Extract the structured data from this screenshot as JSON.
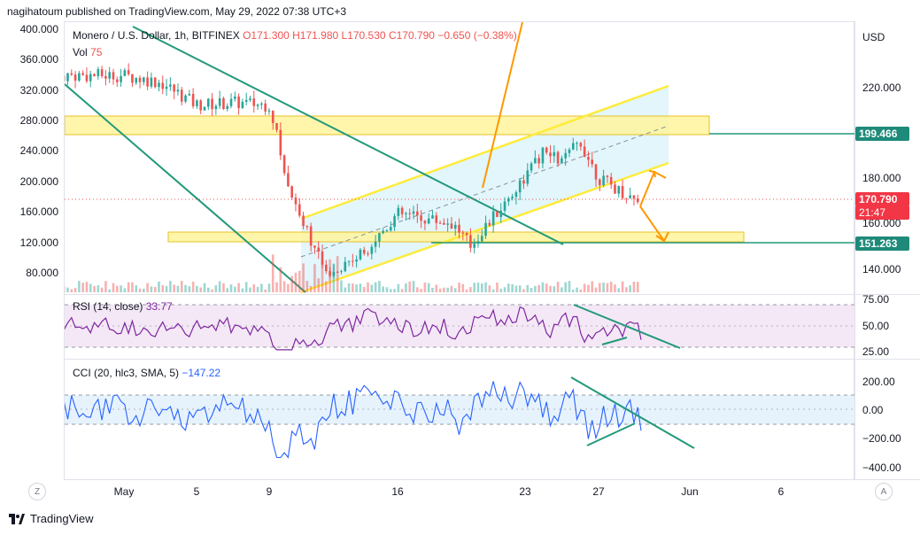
{
  "header": {
    "publisher": "nagihatoum published on TradingView.com, May 29, 2022 07:38 UTC+3"
  },
  "legend": {
    "symbol": "Monero / U.S. Dollar, 1h, BITFINEX",
    "open": "O171.300",
    "high": "H171.980",
    "low": "L170.530",
    "close": "C170.790",
    "change": "−0.650 (−0.38%)",
    "vol_label": "Vol",
    "vol_value": "75"
  },
  "right_axis": {
    "currency": "USD",
    "ticks": [
      "220.000",
      "180.000",
      "160.000",
      "140.000"
    ],
    "badges": [
      {
        "label": "199.466",
        "color": "#1e8a7a"
      },
      {
        "label": "170.790",
        "color": "#f23645"
      },
      {
        "label": "21:47",
        "color": "#f23645"
      },
      {
        "label": "151.263",
        "color": "#1e8a7a"
      }
    ]
  },
  "left_axis": {
    "ticks": [
      "400.000",
      "360.000",
      "320.000",
      "280.000",
      "240.000",
      "200.000",
      "160.000",
      "120.000",
      "80.000"
    ]
  },
  "rsi": {
    "label": "RSI (14, close)",
    "value": "33.77",
    "ticks": [
      "75.00",
      "50.00",
      "25.00"
    ]
  },
  "cci": {
    "label": "CCI (20, hlc3, SMA, 5)",
    "value": "−147.22",
    "ticks": [
      "200.00",
      "0.00",
      "−200.00",
      "−400.00"
    ]
  },
  "x_axis": {
    "labels": [
      "May",
      "5",
      "9",
      "16",
      "23",
      "27",
      "Jun",
      "6"
    ]
  },
  "controls": {
    "zoom_left": "Z",
    "auto_right": "A"
  },
  "footer": {
    "brand": "TradingView"
  },
  "colors": {
    "up": "#26a69a",
    "down": "#ef5350",
    "rsi_line": "#7e26a0",
    "cci_line": "#2962ff",
    "zone": "#ffeb3b",
    "trend": "#22997a",
    "arrow": "#ff9800",
    "channel": "#ffeb3b",
    "channel_fill": "#d8f3f9"
  },
  "chart_data": [
    {
      "type": "candlestick",
      "title": "Monero / U.S. Dollar, 1h, BITFINEX",
      "ylabel": "USD",
      "x": [
        "May",
        "5",
        "9",
        "16",
        "23",
        "27",
        "Jun",
        "6"
      ],
      "path_close": [
        {
          "x": "May 1",
          "y": 225
        },
        {
          "x": "May 3",
          "y": 222
        },
        {
          "x": "May 5",
          "y": 212
        },
        {
          "x": "May 7",
          "y": 213
        },
        {
          "x": "May 9",
          "y": 212
        },
        {
          "x": "May 10",
          "y": 176
        },
        {
          "x": "May 11",
          "y": 158
        },
        {
          "x": "May 12",
          "y": 138
        },
        {
          "x": "May 14",
          "y": 146
        },
        {
          "x": "May 16",
          "y": 164
        },
        {
          "x": "May 19",
          "y": 160
        },
        {
          "x": "May 20",
          "y": 150
        },
        {
          "x": "May 22",
          "y": 170
        },
        {
          "x": "May 24",
          "y": 191
        },
        {
          "x": "May 25",
          "y": 187
        },
        {
          "x": "May 26",
          "y": 196
        },
        {
          "x": "May 27",
          "y": 180
        },
        {
          "x": "May 28",
          "y": 175
        },
        {
          "x": "May 29",
          "y": 170.79
        }
      ],
      "levels": [
        199.466,
        151.263
      ],
      "last": 170.79
    },
    {
      "type": "line",
      "title": "RSI (14, close)",
      "ylim": [
        25,
        75
      ],
      "series": [
        {
          "name": "RSI (14, close)",
          "last": 33.77
        }
      ]
    },
    {
      "type": "line",
      "title": "CCI (20, hlc3, SMA, 5)",
      "ylim": [
        -400,
        200
      ],
      "series": [
        {
          "name": "CCI (20, hlc3, SMA, 5)",
          "last": -147.22
        }
      ]
    }
  ]
}
